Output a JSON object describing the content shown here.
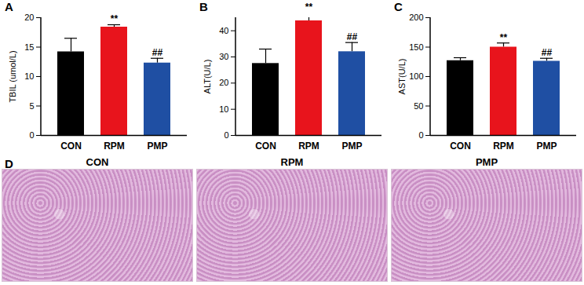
{
  "chart_data": [
    {
      "type": "bar",
      "panel": "A",
      "ylabel": "TBIL (umol/L)",
      "categories": [
        "CON",
        "RPM",
        "PMP"
      ],
      "values": [
        14.2,
        18.4,
        12.3
      ],
      "errors": [
        2.3,
        0.4,
        0.8
      ],
      "significance": [
        null,
        "**",
        "##"
      ],
      "colors": [
        "#000000",
        "#e8141c",
        "#1f4fa3"
      ],
      "ylim": [
        0,
        20
      ],
      "yticks": [
        0,
        5,
        10,
        15,
        20
      ]
    },
    {
      "type": "bar",
      "panel": "B",
      "ylabel": "ALT(U/L)",
      "categories": [
        "CON",
        "RPM",
        "PMP"
      ],
      "values": [
        27.5,
        43.8,
        32
      ],
      "errors": [
        5.5,
        3,
        3.5
      ],
      "significance": [
        null,
        "**",
        "##"
      ],
      "colors": [
        "#000000",
        "#e8141c",
        "#1f4fa3"
      ],
      "ylim": [
        0,
        45
      ],
      "yticks": [
        0,
        10,
        20,
        30,
        40
      ]
    },
    {
      "type": "bar",
      "panel": "C",
      "ylabel": "AST(U/L)",
      "categories": [
        "CON",
        "RPM",
        "PMP"
      ],
      "values": [
        127,
        150,
        126
      ],
      "errors": [
        5,
        7,
        5
      ],
      "significance": [
        null,
        "**",
        "##"
      ],
      "colors": [
        "#000000",
        "#e8141c",
        "#1f4fa3"
      ],
      "ylim": [
        0,
        200
      ],
      "yticks": [
        0,
        50,
        100,
        150,
        200
      ]
    }
  ],
  "image_panel": {
    "panel": "D",
    "labels": [
      "CON",
      "RPM",
      "PMP"
    ]
  }
}
